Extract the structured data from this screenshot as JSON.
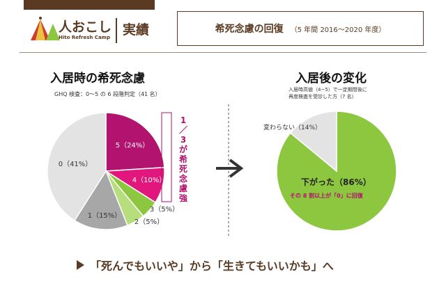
{
  "header": {
    "logo_jp": "人おこし",
    "logo_en": "Hito Refresh Camp",
    "section": "実績",
    "title": "希死念慮の回復",
    "title_sub": "（5 年間 2016～2020 年度）"
  },
  "left": {
    "heading": "入居時の希死念慮",
    "subheading": "GHQ 検査：0～5 の 6 段階判定（41 名）",
    "callout": "1／3が希死念慮強"
  },
  "right": {
    "heading": "入居後の変化",
    "subheading_line1": "入居時高値（4~5）で一定期間後に",
    "subheading_line2": "再度検査を受診した方（7 名）",
    "down_label": "下がった（86%）",
    "down_sub": "その 8 割以上が「0」に回復"
  },
  "footer": {
    "message": "「死んでもいいや」から「生きてもいいかも」へ"
  },
  "colors": {
    "brand": "#5a3a22",
    "magenta_dark": "#b2136e",
    "magenta": "#e2177d",
    "green": "#8dc63f",
    "green_light": "#b7de7d",
    "gray": "#a7a7a7",
    "gray_light": "#e3e3e3"
  },
  "chart_data": [
    {
      "type": "pie",
      "title": "入居時の希死念慮",
      "slices": [
        {
          "label": "5（24%）",
          "value": 24,
          "color": "#b2136e"
        },
        {
          "label": "4（10%）",
          "value": 10,
          "color": "#e2177d"
        },
        {
          "label": "3（5%）",
          "value": 5,
          "color": "#8dc63f"
        },
        {
          "label": "2（5%）",
          "value": 5,
          "color": "#b7de7d"
        },
        {
          "label": "1（15%）",
          "value": 15,
          "color": "#a7a7a7"
        },
        {
          "label": "0（41%）",
          "value": 41,
          "color": "#e3e3e3"
        }
      ]
    },
    {
      "type": "pie",
      "title": "入居後の変化",
      "slices": [
        {
          "label": "下がった（86%）",
          "value": 86,
          "color": "#8dc63f"
        },
        {
          "label": "変わらない（14%）",
          "value": 14,
          "color": "#e3e3e3"
        }
      ]
    }
  ]
}
